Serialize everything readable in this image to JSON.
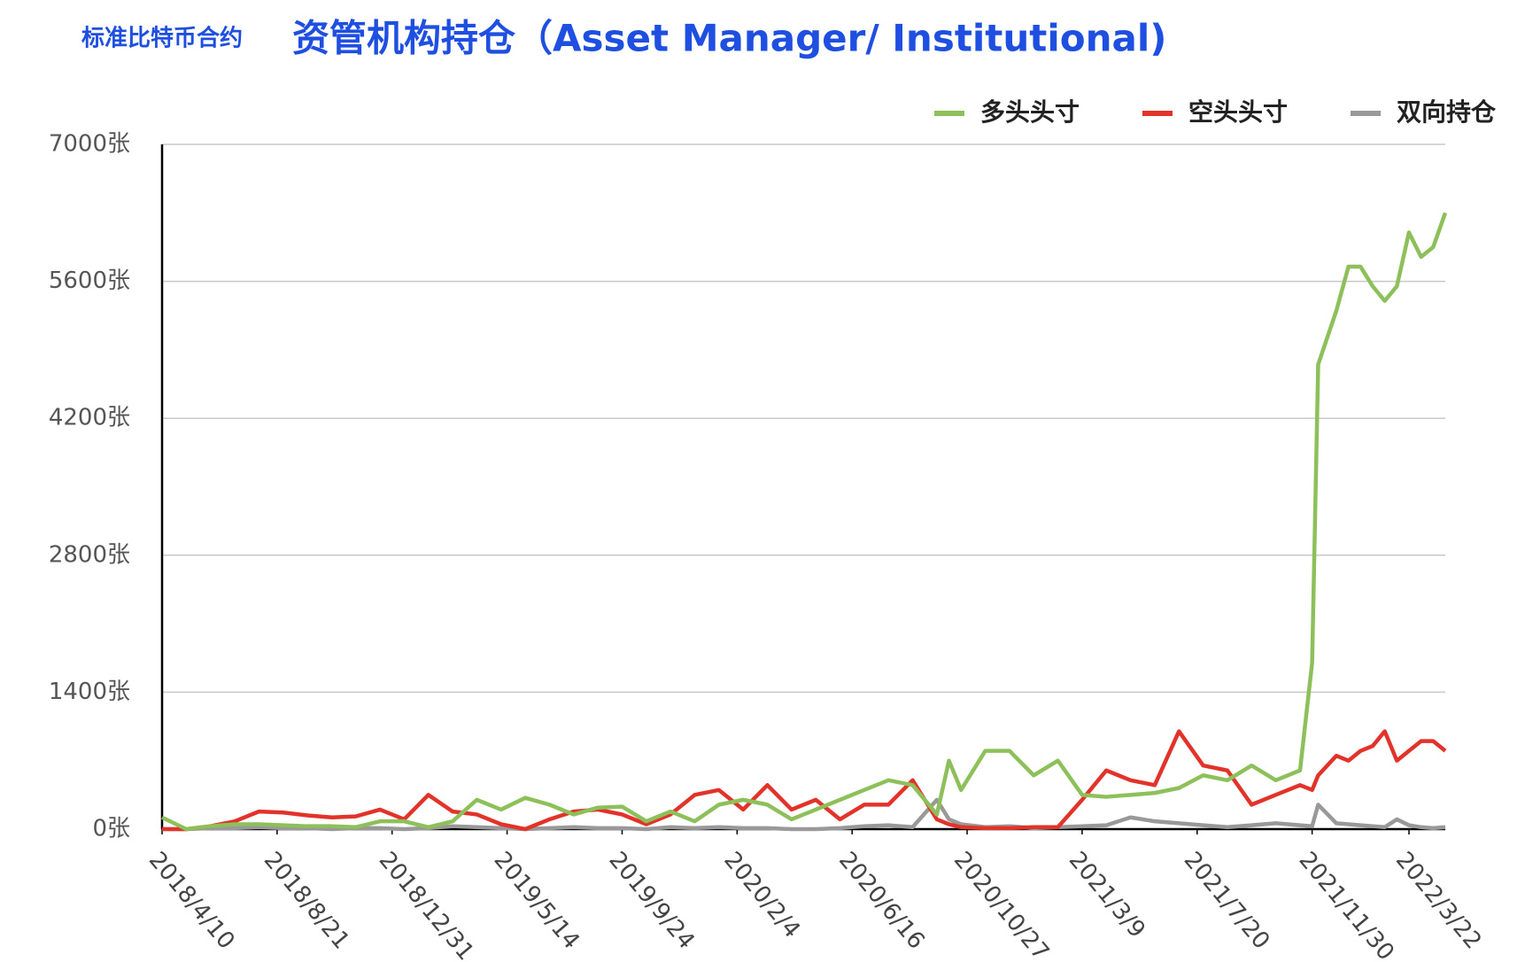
{
  "chart_data": {
    "type": "line",
    "subtitle": "标准比特币合约",
    "title": "资管机构持仓（Asset Manager/ Institutional)",
    "x": [
      0,
      4,
      8,
      12,
      16,
      20,
      24,
      28,
      32,
      36,
      40,
      44,
      48,
      52,
      56,
      60,
      64,
      68,
      72,
      76,
      80,
      84,
      88,
      92,
      96,
      100,
      104,
      108,
      112,
      116,
      120,
      124,
      128,
      130,
      132,
      136,
      140,
      144,
      148,
      152,
      156,
      160,
      164,
      168,
      172,
      176,
      180,
      184,
      188,
      190,
      191,
      194,
      196,
      198,
      200,
      202,
      204,
      206,
      208,
      210,
      212
    ],
    "xlim": [
      0,
      212
    ],
    "xticks": [
      {
        "value": 0,
        "label": "2018/4/10"
      },
      {
        "value": 19,
        "label": "2018/8/21"
      },
      {
        "value": 38,
        "label": "2018/12/31"
      },
      {
        "value": 57,
        "label": "2019/5/14"
      },
      {
        "value": 76,
        "label": "2019/9/24"
      },
      {
        "value": 95,
        "label": "2020/2/4"
      },
      {
        "value": 114,
        "label": "2020/6/16"
      },
      {
        "value": 133,
        "label": "2020/10/27"
      },
      {
        "value": 152,
        "label": "2021/3/9"
      },
      {
        "value": 171,
        "label": "2021/7/20"
      },
      {
        "value": 190,
        "label": "2021/11/30"
      },
      {
        "value": 206,
        "label": "2022/3/22"
      }
    ],
    "ylim": [
      0,
      7000
    ],
    "yticks": [
      {
        "value": 0,
        "label": "0张"
      },
      {
        "value": 1400,
        "label": "1400张"
      },
      {
        "value": 2800,
        "label": "2800张"
      },
      {
        "value": 4200,
        "label": "4200张"
      },
      {
        "value": 5600,
        "label": "5600张"
      },
      {
        "value": 7000,
        "label": "7000张"
      }
    ],
    "grid": true,
    "legend": "top-right",
    "series": [
      {
        "name": "多头头寸",
        "color": "#8dc05a",
        "values": [
          120,
          0,
          30,
          50,
          50,
          40,
          30,
          30,
          20,
          80,
          80,
          20,
          80,
          300,
          200,
          320,
          250,
          150,
          220,
          230,
          80,
          180,
          80,
          250,
          300,
          250,
          100,
          200,
          300,
          400,
          500,
          450,
          150,
          700,
          400,
          800,
          800,
          550,
          700,
          350,
          330,
          350,
          370,
          420,
          550,
          500,
          650,
          500,
          600,
          1700,
          4750,
          5300,
          5750,
          5750,
          5550,
          5400,
          5550,
          6100,
          5850,
          5950,
          6300
        ]
      },
      {
        "name": "空头头寸",
        "color": "#e2332a",
        "values": [
          0,
          0,
          30,
          80,
          180,
          170,
          140,
          120,
          130,
          200,
          100,
          350,
          180,
          150,
          50,
          0,
          100,
          180,
          200,
          150,
          50,
          150,
          350,
          400,
          200,
          450,
          200,
          300,
          100,
          250,
          250,
          500,
          100,
          50,
          20,
          10,
          10,
          20,
          20,
          300,
          600,
          500,
          450,
          1000,
          650,
          600,
          250,
          350,
          450,
          400,
          550,
          750,
          700,
          800,
          850,
          1000,
          700,
          800,
          900,
          900,
          800
        ]
      },
      {
        "name": "双向持仓",
        "color": "#999999",
        "values": [
          0,
          0,
          10,
          10,
          20,
          10,
          10,
          0,
          10,
          10,
          0,
          10,
          30,
          20,
          10,
          0,
          10,
          20,
          10,
          10,
          0,
          20,
          10,
          20,
          10,
          10,
          0,
          0,
          10,
          30,
          40,
          20,
          300,
          100,
          50,
          20,
          30,
          10,
          20,
          30,
          40,
          120,
          80,
          60,
          40,
          20,
          40,
          60,
          40,
          30,
          250,
          60,
          50,
          40,
          30,
          20,
          100,
          40,
          20,
          10,
          20
        ]
      }
    ]
  }
}
